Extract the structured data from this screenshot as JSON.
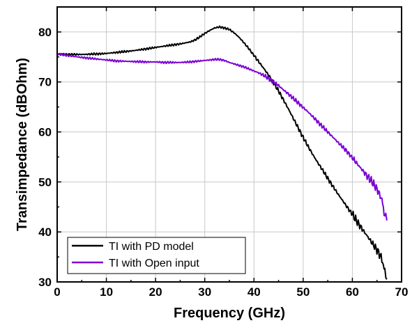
{
  "chart_data": {
    "type": "line",
    "title": "",
    "xlabel": "Frequency (GHz)",
    "ylabel": "Transimpedance (dBOhm)",
    "xlim": [
      0,
      70
    ],
    "ylim": [
      30,
      85
    ],
    "xticks": [
      0,
      10,
      20,
      30,
      40,
      50,
      60,
      70
    ],
    "yticks": [
      30,
      40,
      50,
      60,
      70,
      80
    ],
    "grid": true,
    "legend_position": "bottom-left",
    "series": [
      {
        "name": "TI with PD model",
        "color": "#000000",
        "x": [
          0,
          2,
          5,
          8,
          10,
          12,
          15,
          18,
          20,
          22,
          25,
          27,
          28,
          29,
          30,
          31,
          32,
          33,
          34,
          35,
          36,
          37,
          38,
          39,
          40,
          41,
          42,
          43,
          44,
          45,
          46,
          47,
          48,
          49,
          50,
          51,
          52,
          53,
          54,
          55,
          56,
          57,
          58,
          59,
          60,
          61,
          62,
          63,
          64,
          65,
          65.5,
          66,
          66.3,
          66.6,
          67
        ],
        "y": [
          75.6,
          75.5,
          75.5,
          75.6,
          75.7,
          75.9,
          76.2,
          76.6,
          76.9,
          77.2,
          77.6,
          78.0,
          78.4,
          79.0,
          79.7,
          80.3,
          80.8,
          81.0,
          80.8,
          80.5,
          79.8,
          78.9,
          77.8,
          76.6,
          75.3,
          74.0,
          72.7,
          71.3,
          69.8,
          68.2,
          66.4,
          64.6,
          62.7,
          60.8,
          58.9,
          57.1,
          55.4,
          53.8,
          52.3,
          50.7,
          49.2,
          47.7,
          46.3,
          44.9,
          43.5,
          42.0,
          40.6,
          39.2,
          37.8,
          36.4,
          35.6,
          34.6,
          33.5,
          31.8,
          30.5
        ]
      },
      {
        "name": "TI with Open input",
        "color": "#7B00D6",
        "x": [
          0,
          2,
          5,
          8,
          10,
          12,
          15,
          18,
          20,
          22,
          25,
          27,
          28,
          30,
          32,
          33,
          34,
          35,
          36,
          37,
          38,
          39,
          40,
          41,
          42,
          43,
          44,
          45,
          46,
          47,
          48,
          49,
          50,
          51,
          52,
          53,
          54,
          55,
          56,
          57,
          58,
          59,
          60,
          61,
          62,
          63,
          64,
          65,
          65.5,
          66,
          66.3,
          66.6,
          67
        ],
        "y": [
          75.6,
          75.3,
          74.9,
          74.6,
          74.4,
          74.2,
          74.1,
          74.0,
          74.0,
          73.9,
          73.9,
          74.0,
          74.1,
          74.3,
          74.5,
          74.5,
          74.3,
          73.9,
          73.6,
          73.3,
          73.0,
          72.6,
          72.2,
          71.8,
          71.3,
          70.7,
          70.0,
          69.3,
          68.4,
          67.6,
          66.7,
          65.8,
          64.9,
          64.0,
          63.0,
          62.0,
          61.0,
          60.0,
          59.0,
          58.0,
          57.0,
          56.0,
          54.8,
          53.6,
          52.4,
          51.2,
          50.0,
          48.6,
          47.6,
          46.4,
          44.5,
          43.5,
          42.3
        ]
      }
    ]
  }
}
